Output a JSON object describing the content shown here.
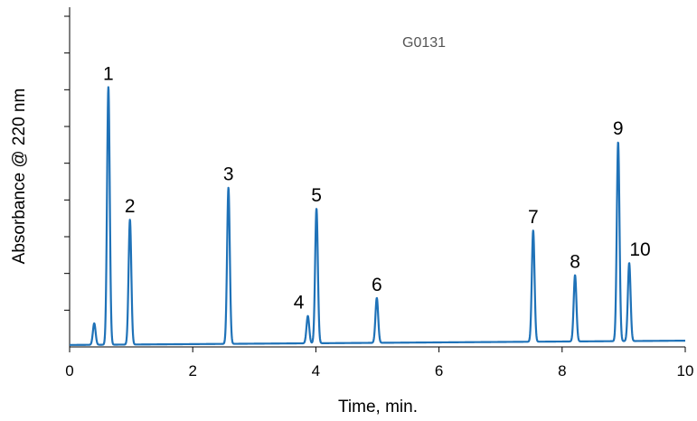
{
  "chart_data": {
    "type": "line",
    "title": "",
    "annotation": "G0131",
    "xlabel": "Time, min.",
    "ylabel": "Absorbance @ 220 nm",
    "xlim": [
      0,
      10
    ],
    "ylim": [
      0,
      8.7
    ],
    "x_ticks": [
      0,
      2,
      4,
      6,
      8,
      10
    ],
    "x_tick_labels": [
      "0",
      "2",
      "4",
      "6",
      "8",
      "10"
    ],
    "y_tick_count": 9,
    "y_tick_labels_shown": false,
    "grid": false,
    "legend": "none",
    "series_color": "#1f72b8",
    "baseline": {
      "start": 0.05,
      "end": 0.16
    },
    "peaks": [
      {
        "label": "",
        "time": 0.4,
        "height": 0.55
      },
      {
        "label": "1",
        "time": 0.63,
        "height": 6.6
      },
      {
        "label": "2",
        "time": 0.98,
        "height": 3.2
      },
      {
        "label": "3",
        "time": 2.58,
        "height": 4.0
      },
      {
        "label": "4",
        "time": 3.87,
        "height": 0.7
      },
      {
        "label": "5",
        "time": 4.01,
        "height": 3.45
      },
      {
        "label": "6",
        "time": 4.99,
        "height": 1.15
      },
      {
        "label": "7",
        "time": 7.53,
        "height": 2.85
      },
      {
        "label": "8",
        "time": 8.21,
        "height": 1.7
      },
      {
        "label": "9",
        "time": 8.91,
        "height": 5.1
      },
      {
        "label": "10",
        "time": 9.09,
        "height": 2.0
      }
    ]
  }
}
